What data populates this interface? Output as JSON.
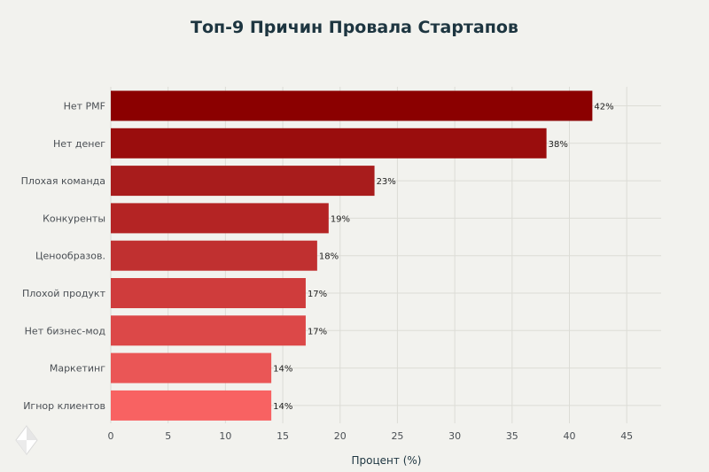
{
  "chart_data": {
    "type": "bar",
    "orientation": "horizontal",
    "title": "Топ-9 Причин Провала Стартапов",
    "xlabel": "Процент (%)",
    "ylabel": "",
    "categories": [
      "Нет PMF",
      "Нет денег",
      "Плохая команда",
      "Конкуренты",
      "Ценообразов.",
      "Плохой продукт",
      "Нет бизнес-мод",
      "Маркетинг",
      "Игнор клиентов"
    ],
    "values": [
      42,
      38,
      23,
      19,
      18,
      17,
      17,
      14,
      14
    ],
    "data_labels": [
      "42%",
      "38%",
      "23%",
      "19%",
      "18%",
      "17%",
      "17%",
      "14%",
      "14%"
    ],
    "xlim": [
      0,
      48
    ],
    "x_ticks": [
      0,
      5,
      10,
      15,
      20,
      25,
      30,
      35,
      40,
      45
    ],
    "grid": true,
    "colors": [
      "#8b0000",
      "#9a0d0d",
      "#a81c1c",
      "#b42424",
      "#c03030",
      "#cf3c3c",
      "#dc4848",
      "#ea5656",
      "#f86262"
    ],
    "logo_icon": "diamond-logo-icon"
  }
}
